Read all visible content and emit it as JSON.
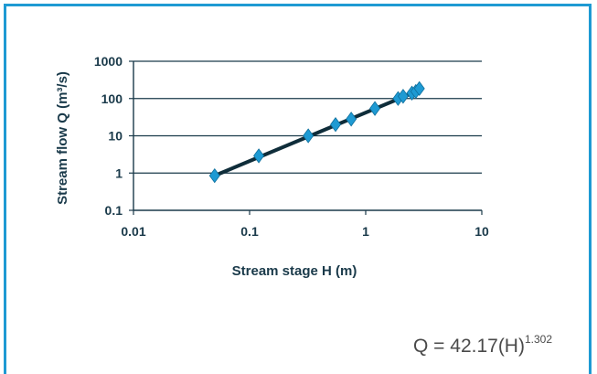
{
  "chart_data": {
    "type": "scatter",
    "title": "",
    "xlabel": "Stream stage H (m)",
    "ylabel": "Stream flow Q (m³/s)",
    "x_scale": "log",
    "y_scale": "log",
    "xlim": [
      0.01,
      10
    ],
    "ylim": [
      0.1,
      1000
    ],
    "x_ticks": [
      "0.01",
      "0.1",
      "1",
      "10"
    ],
    "y_ticks": [
      "0.1",
      "1",
      "10",
      "100",
      "1000"
    ],
    "grid": "horizontal",
    "legend": "none",
    "series": [
      {
        "type": "scatter",
        "marker": "diamond",
        "color": "#1e9ad3",
        "points": [
          {
            "x": 0.05,
            "y": 0.85
          },
          {
            "x": 0.12,
            "y": 2.9
          },
          {
            "x": 0.32,
            "y": 10
          },
          {
            "x": 0.55,
            "y": 20
          },
          {
            "x": 0.75,
            "y": 28
          },
          {
            "x": 1.2,
            "y": 54
          },
          {
            "x": 1.9,
            "y": 100
          },
          {
            "x": 2.1,
            "y": 115
          },
          {
            "x": 2.5,
            "y": 140
          },
          {
            "x": 2.7,
            "y": 155
          },
          {
            "x": 2.9,
            "y": 185
          }
        ]
      },
      {
        "type": "line",
        "color": "#0f2d3a",
        "points": [
          {
            "x": 0.05,
            "y": 0.85
          },
          {
            "x": 3.0,
            "y": 175
          }
        ]
      }
    ],
    "equation": {
      "base": "Q = 42.17(H)",
      "exponent": "1.302"
    }
  }
}
